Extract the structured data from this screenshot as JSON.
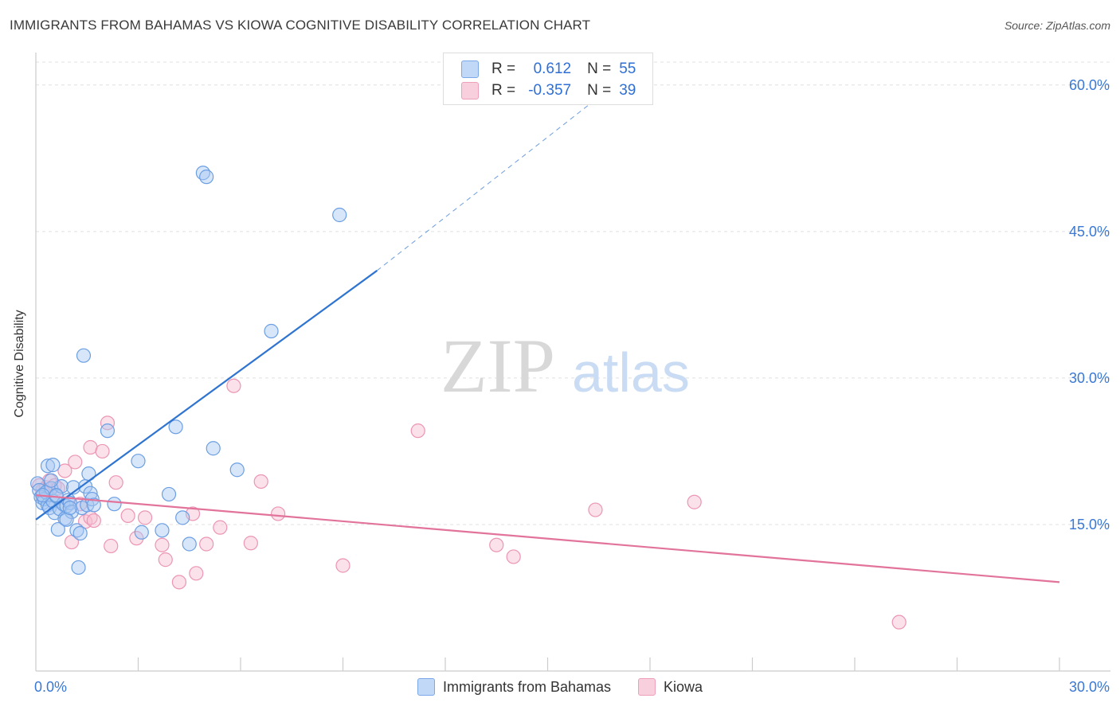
{
  "title": "IMMIGRANTS FROM BAHAMAS VS KIOWA COGNITIVE DISABILITY CORRELATION CHART",
  "source": "Source: ZipAtlas.com",
  "watermark": {
    "zip": "ZIP",
    "atlas": "atlas"
  },
  "legend": {
    "series1": "Immigrants from Bahamas",
    "series2": "Kiowa"
  },
  "stats": {
    "r_label": "R =",
    "n_label": "N =",
    "series1": {
      "r": "0.612",
      "n": "55"
    },
    "series2": {
      "r": "-0.357",
      "n": "39"
    }
  },
  "colors": {
    "blue_fill": "#a9c8f2",
    "blue_stroke": "#6b9fe3",
    "blue_line": "#2f74d0",
    "pink_fill": "#f6bdd0",
    "pink_stroke": "#ec95b5",
    "pink_line": "#e2739b",
    "tick_text": "#3a78d4",
    "grid": "#e0e0e0"
  },
  "chart_data": {
    "type": "scatter",
    "title": "IMMIGRANTS FROM BAHAMAS VS KIOWA COGNITIVE DISABILITY CORRELATION CHART",
    "xlabel": "",
    "ylabel": "Cognitive Disability",
    "xlim": [
      0,
      30
    ],
    "ylim": [
      0,
      63
    ],
    "x_tick_labels": [
      {
        "value": 0,
        "label": "0.0%"
      },
      {
        "value": 30,
        "label": "30.0%"
      }
    ],
    "y_tick_labels": [
      {
        "value": 15,
        "label": "15.0%"
      },
      {
        "value": 30,
        "label": "30.0%"
      },
      {
        "value": 45,
        "label": "45.0%"
      },
      {
        "value": 60,
        "label": "60.0%"
      }
    ],
    "x_minor_ticks": [
      3,
      6,
      9,
      12,
      15,
      18,
      21,
      24,
      27,
      30
    ],
    "series": [
      {
        "name": "Immigrants from Bahamas",
        "color": "blue",
        "r": 0.612,
        "n": 55,
        "trend": {
          "x0": 0,
          "y0": 15.5,
          "x1": 10,
          "y1": 41.0,
          "dash_to_x": 16.4,
          "dash_to_y": 58.5
        },
        "points": [
          [
            0.05,
            19.2
          ],
          [
            0.1,
            18.5
          ],
          [
            0.15,
            17.8
          ],
          [
            0.2,
            17.2
          ],
          [
            0.25,
            17.6
          ],
          [
            0.3,
            18.3
          ],
          [
            0.35,
            17.0
          ],
          [
            0.4,
            16.7
          ],
          [
            0.45,
            18.7
          ],
          [
            0.5,
            17.4
          ],
          [
            0.55,
            16.2
          ],
          [
            0.6,
            17.9
          ],
          [
            0.7,
            16.6
          ],
          [
            0.75,
            18.9
          ],
          [
            0.8,
            17.1
          ],
          [
            0.85,
            15.6
          ],
          [
            0.9,
            16.9
          ],
          [
            0.95,
            17.5
          ],
          [
            1.0,
            17.2
          ],
          [
            1.05,
            16.3
          ],
          [
            1.1,
            18.8
          ],
          [
            0.35,
            21.0
          ],
          [
            0.5,
            21.1
          ],
          [
            0.65,
            14.5
          ],
          [
            1.2,
            14.4
          ],
          [
            1.3,
            14.1
          ],
          [
            1.25,
            10.6
          ],
          [
            1.35,
            16.7
          ],
          [
            1.45,
            18.9
          ],
          [
            1.5,
            17.0
          ],
          [
            1.55,
            20.2
          ],
          [
            1.6,
            18.2
          ],
          [
            1.65,
            17.6
          ],
          [
            1.7,
            17.0
          ],
          [
            1.4,
            32.3
          ],
          [
            2.1,
            24.6
          ],
          [
            2.3,
            17.1
          ],
          [
            3.0,
            21.5
          ],
          [
            3.1,
            14.2
          ],
          [
            3.7,
            14.4
          ],
          [
            3.9,
            18.1
          ],
          [
            4.1,
            25.0
          ],
          [
            4.3,
            15.7
          ],
          [
            4.5,
            13.0
          ],
          [
            4.9,
            51.0
          ],
          [
            5.0,
            50.6
          ],
          [
            5.2,
            22.8
          ],
          [
            5.9,
            20.6
          ],
          [
            6.9,
            34.8
          ],
          [
            8.9,
            46.7
          ],
          [
            0.9,
            15.5
          ],
          [
            1.0,
            16.7
          ],
          [
            0.6,
            18.0
          ],
          [
            0.45,
            19.5
          ],
          [
            0.2,
            18.0
          ]
        ]
      },
      {
        "name": "Kiowa",
        "color": "pink",
        "r": -0.357,
        "n": 39,
        "trend": {
          "x0": 0,
          "y0": 18.0,
          "x1": 30,
          "y1": 9.1
        },
        "points": [
          [
            0.1,
            19.0
          ],
          [
            0.2,
            18.5
          ],
          [
            0.3,
            18.8
          ],
          [
            0.4,
            19.5
          ],
          [
            0.55,
            19.0
          ],
          [
            0.65,
            18.7
          ],
          [
            0.85,
            20.5
          ],
          [
            1.05,
            13.2
          ],
          [
            1.15,
            21.4
          ],
          [
            1.3,
            17.1
          ],
          [
            1.45,
            15.3
          ],
          [
            1.6,
            15.7
          ],
          [
            1.7,
            15.4
          ],
          [
            1.6,
            22.9
          ],
          [
            1.95,
            22.5
          ],
          [
            2.1,
            25.4
          ],
          [
            2.2,
            12.8
          ],
          [
            2.35,
            19.3
          ],
          [
            2.7,
            15.9
          ],
          [
            2.95,
            13.6
          ],
          [
            3.2,
            15.7
          ],
          [
            3.7,
            12.9
          ],
          [
            3.8,
            11.4
          ],
          [
            4.2,
            9.1
          ],
          [
            4.6,
            16.1
          ],
          [
            4.7,
            10.0
          ],
          [
            5.0,
            13.0
          ],
          [
            5.4,
            14.7
          ],
          [
            5.8,
            29.2
          ],
          [
            6.3,
            13.1
          ],
          [
            6.6,
            19.4
          ],
          [
            7.1,
            16.1
          ],
          [
            9.0,
            10.8
          ],
          [
            11.2,
            24.6
          ],
          [
            13.5,
            12.9
          ],
          [
            14.0,
            11.7
          ],
          [
            16.4,
            16.5
          ],
          [
            19.3,
            17.3
          ],
          [
            25.3,
            5.0
          ]
        ]
      }
    ]
  }
}
